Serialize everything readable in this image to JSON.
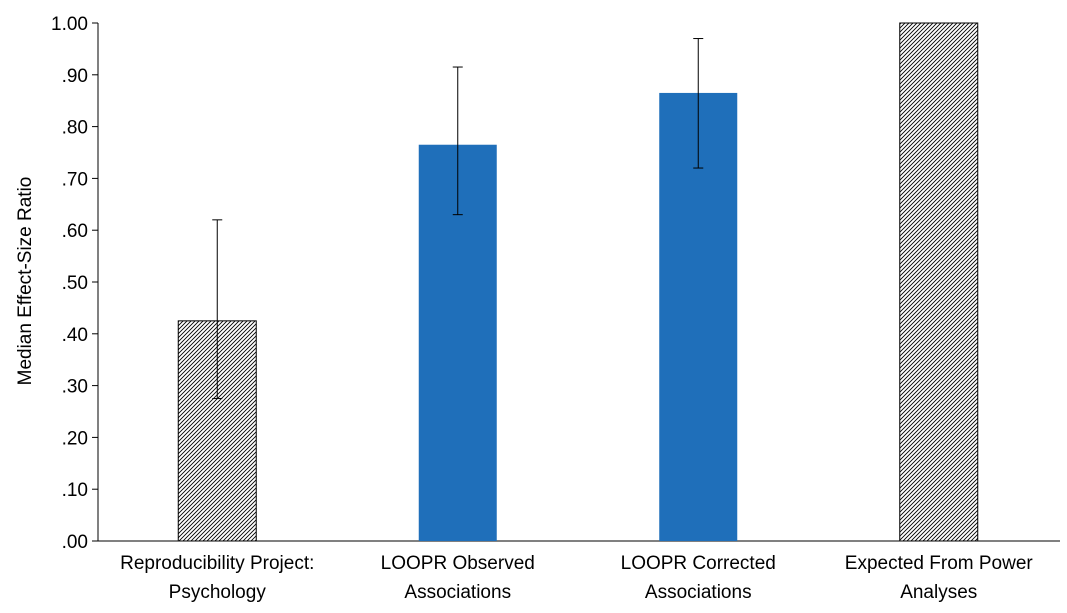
{
  "chart_data": {
    "type": "bar",
    "title": "",
    "xlabel": "",
    "ylabel": "Median Effect-Size Ratio",
    "ylim": [
      0,
      1.0
    ],
    "yticks": [
      ".00",
      ".10",
      ".20",
      ".30",
      ".40",
      ".50",
      ".60",
      ".70",
      ".80",
      ".90",
      "1.00"
    ],
    "grid": false,
    "legend": "none",
    "categories": [
      [
        "Reproducibility Project:",
        "Psychology"
      ],
      [
        "LOOPR Observed",
        "Associations"
      ],
      [
        "LOOPR Corrected",
        "Associations"
      ],
      [
        "Expected From Power",
        "Analyses"
      ]
    ],
    "values": [
      0.425,
      0.765,
      0.865,
      1.0
    ],
    "error_low": [
      0.275,
      0.63,
      0.72,
      null
    ],
    "error_high": [
      0.62,
      0.915,
      0.97,
      null
    ],
    "bar_styles": [
      "hatched",
      "solid",
      "solid",
      "hatched"
    ],
    "colors": {
      "solid": "#1f6fba",
      "hatch_line": "#000000",
      "hatch_bg": "#ffffff",
      "axis": "#000000"
    }
  }
}
